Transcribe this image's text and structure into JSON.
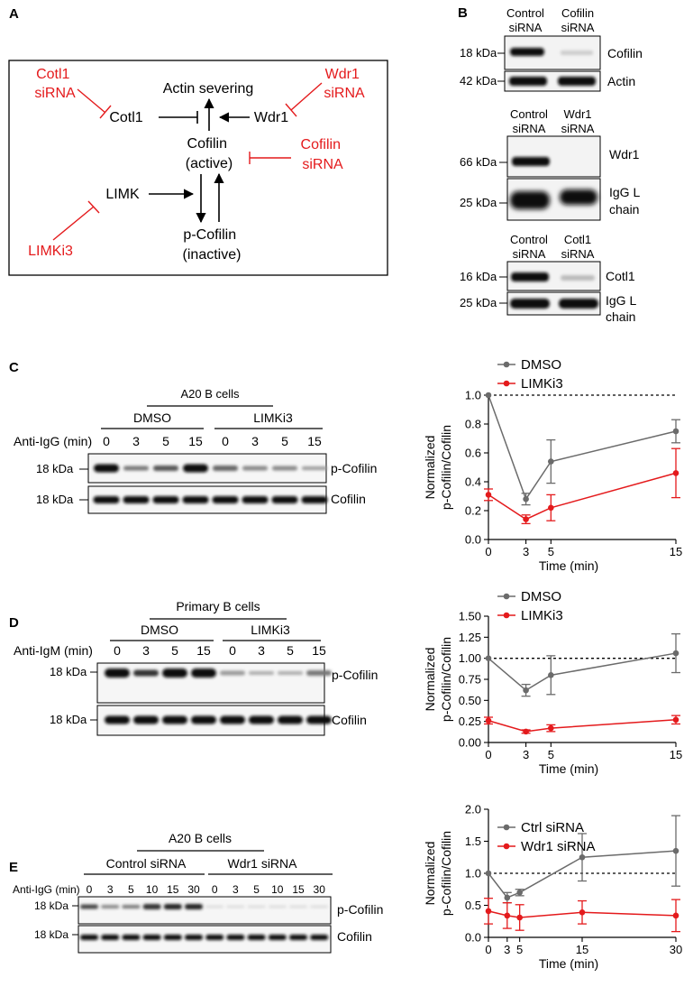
{
  "panel_labels": {
    "a": "A",
    "b": "B",
    "c": "C",
    "d": "D",
    "e": "E"
  },
  "colors": {
    "dmso": "#6b6b6b",
    "limki3": "#e41a1c",
    "inhibitor_red": "#e41a1c",
    "band": "#111111"
  },
  "panel_a": {
    "cotl1_sirna": [
      "Cotl1",
      "siRNA"
    ],
    "wdr1_sirna": [
      "Wdr1",
      "siRNA"
    ],
    "cofilin_sirna": [
      "Cofilin",
      "siRNA"
    ],
    "actin_severing": "Actin severing",
    "cotl1": "Cotl1",
    "wdr1": "Wdr1",
    "cofilin_active": [
      "Cofilin",
      "(active)"
    ],
    "limk": "LIMK",
    "p_cofilin_inactive": [
      "p-Cofilin",
      "(inactive)"
    ],
    "limki3": "LIMKi3"
  },
  "panel_b": {
    "blot1": {
      "cols": [
        [
          "Control",
          "siRNA"
        ],
        [
          "Cofilin",
          "siRNA"
        ]
      ],
      "rows": [
        {
          "kda": "18 kDa",
          "label": [
            "Cofilin"
          ]
        },
        {
          "kda": "42 kDa",
          "label": [
            "Actin"
          ]
        }
      ]
    },
    "blot2": {
      "cols": [
        [
          "Control",
          "siRNA"
        ],
        [
          "Wdr1",
          "siRNA"
        ]
      ],
      "rows": [
        {
          "kda": "66 kDa",
          "label": [
            "Wdr1"
          ]
        },
        {
          "kda": "25 kDa",
          "label": [
            "IgG L",
            "chain"
          ]
        }
      ]
    },
    "blot3": {
      "cols": [
        [
          "Control",
          "siRNA"
        ],
        [
          "Cotl1",
          "siRNA"
        ]
      ],
      "rows": [
        {
          "kda": "16 kDa",
          "label": [
            "Cotl1"
          ]
        },
        {
          "kda": "25 kDa",
          "label": [
            "IgG L",
            "chain"
          ]
        }
      ]
    }
  },
  "panel_c": {
    "cell_type": "A20 B cells",
    "groups": [
      "DMSO",
      "LIMKi3"
    ],
    "treatment": "Anti-IgG (min)",
    "lanes": [
      "0",
      "3",
      "5",
      "15",
      "0",
      "3",
      "5",
      "15"
    ],
    "rows": [
      {
        "kda": "18 kDa",
        "label": "p-Cofilin"
      },
      {
        "kda": "18 kDa",
        "label": "Cofilin"
      }
    ]
  },
  "panel_d": {
    "cell_type": "Primary B cells",
    "groups": [
      "DMSO",
      "LIMKi3"
    ],
    "treatment": "Anti-IgM (min)",
    "lanes": [
      "0",
      "3",
      "5",
      "15",
      "0",
      "3",
      "5",
      "15"
    ],
    "rows": [
      {
        "kda": "18 kDa",
        "label": "p-Cofilin"
      },
      {
        "kda": "18 kDa",
        "label": "Cofilin"
      }
    ]
  },
  "panel_e": {
    "cell_type": "A20 B cells",
    "groups": [
      "Control siRNA",
      "Wdr1 siRNA"
    ],
    "treatment": "Anti-IgG (min)",
    "lanes": [
      "0",
      "3",
      "5",
      "10",
      "15",
      "30",
      "0",
      "3",
      "5",
      "10",
      "15",
      "30"
    ],
    "rows": [
      {
        "kda": "18 kDa",
        "label": "p-Cofilin"
      },
      {
        "kda": "18 kDa",
        "label": "Cofilin"
      }
    ]
  },
  "chart_data": [
    {
      "type": "line",
      "xlabel": "Time (min)",
      "ylabel": [
        "Normalized",
        "p-Cofilin/Cofilin"
      ],
      "xlim": [
        0,
        15
      ],
      "ylim": [
        0,
        1.0
      ],
      "xticks": [
        0,
        3,
        5,
        15
      ],
      "yticks": [
        0,
        0.2,
        0.4,
        0.6,
        0.8,
        1.0
      ],
      "ytick_labels": [
        "0.0",
        "0.2",
        "0.4",
        "0.6",
        "0.8",
        "1.0"
      ],
      "reference_line": 1.0,
      "legend_position": "top",
      "series": [
        {
          "name": "DMSO",
          "color": "#6b6b6b",
          "x": [
            0,
            3,
            5,
            15
          ],
          "y": [
            1.0,
            0.28,
            0.54,
            0.75
          ],
          "err": [
            0,
            0.04,
            0.15,
            0.08
          ]
        },
        {
          "name": "LIMKi3",
          "color": "#e41a1c",
          "x": [
            0,
            3,
            5,
            15
          ],
          "y": [
            0.31,
            0.14,
            0.22,
            0.46
          ],
          "err": [
            0.04,
            0.03,
            0.09,
            0.17
          ]
        }
      ]
    },
    {
      "type": "line",
      "xlabel": "Time (min)",
      "ylabel": [
        "Normalized",
        "p-Cofilin/Cofilin"
      ],
      "xlim": [
        0,
        15
      ],
      "ylim": [
        0,
        1.5
      ],
      "xticks": [
        0,
        3,
        5,
        15
      ],
      "yticks": [
        0,
        0.25,
        0.5,
        0.75,
        1.0,
        1.25,
        1.5
      ],
      "ytick_labels": [
        "0.00",
        "0.25",
        "0.50",
        "0.75",
        "1.00",
        "1.25",
        "1.50"
      ],
      "reference_line": 1.0,
      "legend_position": "top",
      "series": [
        {
          "name": "DMSO",
          "color": "#6b6b6b",
          "x": [
            0,
            3,
            5,
            15
          ],
          "y": [
            1.0,
            0.62,
            0.8,
            1.06
          ],
          "err": [
            0,
            0.07,
            0.23,
            0.23
          ]
        },
        {
          "name": "LIMKi3",
          "color": "#e41a1c",
          "x": [
            0,
            3,
            5,
            15
          ],
          "y": [
            0.26,
            0.13,
            0.17,
            0.27
          ],
          "err": [
            0.04,
            0.02,
            0.04,
            0.05
          ]
        }
      ]
    },
    {
      "type": "line",
      "xlabel": "Time (min)",
      "ylabel": [
        "Normalized",
        "p-Cofilin/Cofilin"
      ],
      "xlim": [
        0,
        30
      ],
      "ylim": [
        0,
        2.0
      ],
      "xticks": [
        0,
        3,
        5,
        15,
        30
      ],
      "yticks": [
        0,
        0.5,
        1.0,
        1.5,
        2.0
      ],
      "ytick_labels": [
        "0.0",
        "0.5",
        "1.0",
        "1.5",
        "2.0"
      ],
      "reference_line": 1.0,
      "legend_position": "top",
      "series": [
        {
          "name": "Ctrl siRNA",
          "color": "#6b6b6b",
          "x": [
            0,
            3,
            5,
            15,
            30
          ],
          "y": [
            1.0,
            0.62,
            0.7,
            1.25,
            1.35
          ],
          "err": [
            0,
            0.08,
            0.05,
            0.37,
            0.55
          ]
        },
        {
          "name": "Wdr1 siRNA",
          "color": "#e41a1c",
          "x": [
            0,
            3,
            5,
            15,
            30
          ],
          "y": [
            0.41,
            0.34,
            0.31,
            0.39,
            0.34
          ],
          "err": [
            0.2,
            0.2,
            0.2,
            0.18,
            0.25
          ]
        }
      ]
    }
  ]
}
